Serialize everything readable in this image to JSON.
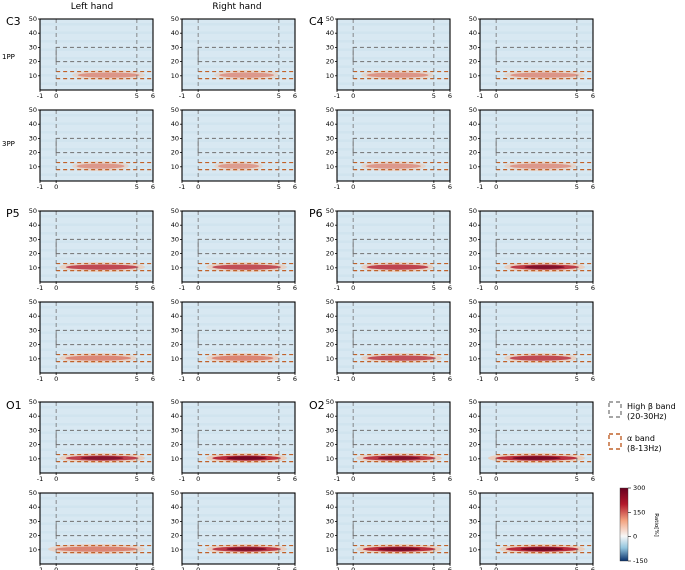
{
  "figure": {
    "column_headers": [
      "Left hand",
      "Right hand"
    ],
    "row_labels": [
      "1PP",
      "3PP"
    ],
    "channels": [
      "C3",
      "C4",
      "P5",
      "P6",
      "O1",
      "O2"
    ]
  },
  "legend": {
    "beta": {
      "line1": "High β band",
      "line2": "(20-30Hz)",
      "color": "#707070"
    },
    "alpha": {
      "line1": "α band",
      "line2": "(8-13Hz)",
      "color": "#c0622a"
    }
  },
  "colorbar": {
    "label": "Ratio[%]",
    "ticks": [
      "300",
      "150",
      "0",
      "-150"
    ],
    "tick_values": [
      300,
      150,
      0,
      -150
    ],
    "min": -150,
    "max": 300,
    "colors": {
      "high": "#67001f",
      "mid_high": "#d6604d",
      "zero": "#f7f7f7",
      "low": "#6aa6cc",
      "min": "#08306b"
    }
  },
  "chart_data": {
    "type": "heatmap",
    "xlabel": "",
    "ylabel": "",
    "xlim": [
      -1,
      6
    ],
    "ylim": [
      0,
      50
    ],
    "xticks": [
      "-1",
      "0",
      "5",
      "6"
    ],
    "xtick_values": [
      -1,
      0,
      5,
      6
    ],
    "yticks": [
      "10",
      "20",
      "30",
      "40",
      "50"
    ],
    "ytick_values": [
      10,
      20,
      30,
      40,
      50
    ],
    "background_color": "#d8e8f2",
    "dashed_markers": {
      "x": [
        0,
        5
      ]
    },
    "bands": {
      "beta": [
        20,
        30
      ],
      "alpha": [
        8,
        13
      ]
    },
    "panels": [
      {
        "channel": "C3",
        "condition": "1PP",
        "hand": "Left hand",
        "alpha_strength": 0.35,
        "alpha_x": [
          1,
          5.5
        ]
      },
      {
        "channel": "C3",
        "condition": "1PP",
        "hand": "Right hand",
        "alpha_strength": 0.3,
        "alpha_x": [
          1,
          5
        ]
      },
      {
        "channel": "C4",
        "condition": "1PP",
        "hand": "Left hand",
        "alpha_strength": 0.35,
        "alpha_x": [
          0.5,
          5
        ]
      },
      {
        "channel": "C4",
        "condition": "1PP",
        "hand": "Right hand",
        "alpha_strength": 0.35,
        "alpha_x": [
          0.5,
          5.5
        ]
      },
      {
        "channel": "C3",
        "condition": "3PP",
        "hand": "Left hand",
        "alpha_strength": 0.3,
        "alpha_x": [
          1,
          4.5
        ]
      },
      {
        "channel": "C3",
        "condition": "3PP",
        "hand": "Right hand",
        "alpha_strength": 0.25,
        "alpha_x": [
          1,
          4
        ]
      },
      {
        "channel": "C4",
        "condition": "3PP",
        "hand": "Left hand",
        "alpha_strength": 0.3,
        "alpha_x": [
          0.5,
          4.5
        ]
      },
      {
        "channel": "C4",
        "condition": "3PP",
        "hand": "Right hand",
        "alpha_strength": 0.3,
        "alpha_x": [
          0.5,
          5
        ]
      },
      {
        "channel": "P5",
        "condition": "1PP",
        "hand": "Left hand",
        "alpha_strength": 0.7,
        "alpha_x": [
          0.2,
          5.5
        ]
      },
      {
        "channel": "P5",
        "condition": "1PP",
        "hand": "Right hand",
        "alpha_strength": 0.65,
        "alpha_x": [
          0.5,
          5.5
        ]
      },
      {
        "channel": "P6",
        "condition": "1PP",
        "hand": "Left hand",
        "alpha_strength": 0.75,
        "alpha_x": [
          0.5,
          5
        ]
      },
      {
        "channel": "P6",
        "condition": "1PP",
        "hand": "Right hand",
        "alpha_strength": 0.85,
        "alpha_x": [
          0.5,
          5.5
        ]
      },
      {
        "channel": "P5",
        "condition": "3PP",
        "hand": "Left hand",
        "alpha_strength": 0.55,
        "alpha_x": [
          0.2,
          5
        ]
      },
      {
        "channel": "P5",
        "condition": "3PP",
        "hand": "Right hand",
        "alpha_strength": 0.6,
        "alpha_x": [
          0.5,
          5
        ]
      },
      {
        "channel": "P6",
        "condition": "3PP",
        "hand": "Left hand",
        "alpha_strength": 0.65,
        "alpha_x": [
          0.5,
          5.5
        ]
      },
      {
        "channel": "P6",
        "condition": "3PP",
        "hand": "Right hand",
        "alpha_strength": 0.7,
        "alpha_x": [
          0.5,
          5
        ]
      },
      {
        "channel": "O1",
        "condition": "1PP",
        "hand": "Left hand",
        "alpha_strength": 0.8,
        "alpha_x": [
          0.2,
          5.5
        ]
      },
      {
        "channel": "O1",
        "condition": "1PP",
        "hand": "Right hand",
        "alpha_strength": 1.0,
        "alpha_x": [
          0.5,
          5.5
        ]
      },
      {
        "channel": "O2",
        "condition": "1PP",
        "hand": "Left hand",
        "alpha_strength": 0.85,
        "alpha_x": [
          0.2,
          5.5
        ]
      },
      {
        "channel": "O2",
        "condition": "1PP",
        "hand": "Right hand",
        "alpha_strength": 0.95,
        "alpha_x": [
          -0.5,
          5.5
        ]
      },
      {
        "channel": "O1",
        "condition": "3PP",
        "hand": "Left hand",
        "alpha_strength": 0.6,
        "alpha_x": [
          -0.5,
          5.5
        ]
      },
      {
        "channel": "O1",
        "condition": "3PP",
        "hand": "Right hand",
        "alpha_strength": 0.85,
        "alpha_x": [
          0.5,
          5.5
        ]
      },
      {
        "channel": "O2",
        "condition": "3PP",
        "hand": "Left hand",
        "alpha_strength": 0.95,
        "alpha_x": [
          0.2,
          5.5
        ]
      },
      {
        "channel": "O2",
        "condition": "3PP",
        "hand": "Right hand",
        "alpha_strength": 1.0,
        "alpha_x": [
          0.2,
          5.5
        ]
      }
    ]
  }
}
